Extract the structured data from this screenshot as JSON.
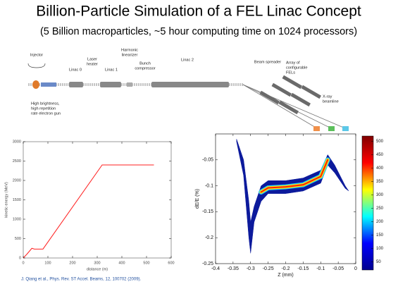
{
  "title": "Billion-Particle Simulation of a FEL Linac Concept",
  "subtitle": "(5 Billion macroparticles, ~5 hour computing time on 1024 processors)",
  "diagram": {
    "labels": [
      {
        "lines": [
          "Injector"
        ]
      },
      {
        "lines": [
          "Linac 0"
        ]
      },
      {
        "lines": [
          "Laser",
          "heater"
        ]
      },
      {
        "lines": [
          "Linac 1"
        ]
      },
      {
        "lines": [
          "Harmonic",
          "linearizer"
        ]
      },
      {
        "lines": [
          "Bunch",
          "compressor"
        ]
      },
      {
        "lines": [
          "Linac 2"
        ]
      },
      {
        "lines": [
          "Beam spreader"
        ]
      },
      {
        "lines": [
          "Array of",
          "configurable",
          "FELs"
        ]
      },
      {
        "lines": [
          "X-ray",
          "beamline"
        ]
      },
      {
        "lines": [
          "High brightness,",
          "high repetition",
          "rate electron gun"
        ]
      },
      {
        "lines": [
          "Endstations"
        ]
      }
    ]
  },
  "chart_data": [
    {
      "type": "line",
      "xlabel": "distance (m)",
      "ylabel": "kinetic energy (MeV)",
      "xlim": [
        0,
        600
      ],
      "xticks": [
        0,
        100,
        200,
        300,
        400,
        500,
        600
      ],
      "ylim": [
        0,
        3000
      ],
      "yticks": [
        0,
        500,
        1000,
        1500,
        2000,
        2500,
        3000
      ],
      "x": [
        0,
        15,
        35,
        45,
        80,
        320,
        530
      ],
      "series": [
        {
          "color": "#ff2020",
          "values": [
            0,
            100,
            250,
            230,
            230,
            2400,
            2400
          ]
        }
      ]
    },
    {
      "type": "band",
      "xlabel": "Z (mm)",
      "ylabel": "dE/E (%)",
      "xlim": [
        -0.4,
        0
      ],
      "xticks": [
        -0.4,
        -0.35,
        -0.3,
        -0.25,
        -0.2,
        -0.15,
        -0.1,
        -0.05,
        0
      ],
      "ylim": [
        -0.25,
        0
      ],
      "yticks": [
        -0.25,
        -0.2,
        -0.15,
        -0.1,
        -0.05
      ],
      "x": [
        -0.34,
        -0.32,
        -0.305,
        -0.3,
        -0.29,
        -0.27,
        -0.25,
        -0.2,
        -0.15,
        -0.1,
        -0.08,
        -0.06,
        -0.03,
        -0.02
      ],
      "series": [
        {
          "color": "#0c1a9c",
          "upper": [
            -0.01,
            -0.05,
            -0.13,
            -0.17,
            -0.14,
            -0.1,
            -0.09,
            -0.09,
            -0.085,
            -0.07,
            -0.04,
            -0.06,
            -0.1,
            -0.11
          ],
          "lower": [
            -0.015,
            -0.08,
            -0.2,
            -0.23,
            -0.17,
            -0.13,
            -0.115,
            -0.115,
            -0.11,
            -0.095,
            -0.06,
            -0.075,
            -0.105,
            -0.11
          ]
        },
        {
          "colors": [
            "#20c8ff",
            "#ffe000",
            "#ff2000"
          ],
          "x": [
            -0.27,
            -0.25,
            -0.2,
            -0.15,
            -0.1,
            -0.08
          ],
          "values": [
            -0.112,
            -0.104,
            -0.102,
            -0.098,
            -0.082,
            -0.05
          ]
        }
      ],
      "colorbar": {
        "lim": [
          20,
          520
        ],
        "ticks": [
          50,
          100,
          150,
          200,
          250,
          300,
          350,
          400,
          450,
          500
        ],
        "colors": [
          "#00008f",
          "#0000ff",
          "#00ffff",
          "#ffff00",
          "#ff0000",
          "#800000"
        ]
      }
    }
  ],
  "citation": "J. Qiang et al., Phys. Rev. ST Accel. Beams, 12, 100702 (2009)."
}
